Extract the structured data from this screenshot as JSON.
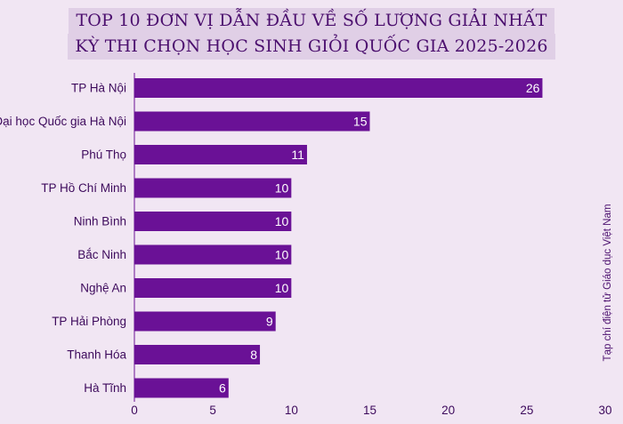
{
  "title_lines": [
    "TOP 10 ĐƠN VỊ DẪN ĐẦU VỀ SỐ LƯỢNG GIẢI NHẤT",
    "KỲ THI CHỌN HỌC SINH GIỎI QUỐC GIA 2025-2026"
  ],
  "source": "Tạp chí điện tử Giáo dục Việt Nam",
  "colors": {
    "bar": "#6a1196",
    "background": "#f1e6f3",
    "title_band": "#e0cfe6",
    "title_text": "#4b0f6e",
    "label_text": "#3d0a5c"
  },
  "chart_data": {
    "type": "bar",
    "orientation": "horizontal",
    "title": "TOP 10 ĐƠN VỊ DẪN ĐẦU VỀ SỐ LƯỢNG GIẢI NHẤT KỲ THI CHỌN HỌC SINH GIỎI QUỐC GIA 2025-2026",
    "categories": [
      "TP Hà Nội",
      "Đại học Quốc gia Hà Nội",
      "Phú Thọ",
      "TP Hồ Chí Minh",
      "Ninh Bình",
      "Bắc Ninh",
      "Nghệ An",
      "TP Hải Phòng",
      "Thanh Hóa",
      "Hà Tĩnh"
    ],
    "values": [
      26,
      15,
      11,
      10,
      10,
      10,
      10,
      9,
      8,
      6
    ],
    "xlim": [
      0,
      30
    ],
    "xticks": [
      0,
      5,
      10,
      15,
      20,
      25,
      30
    ],
    "xlabel": "",
    "ylabel": "",
    "grid": false,
    "data_labels": true
  }
}
